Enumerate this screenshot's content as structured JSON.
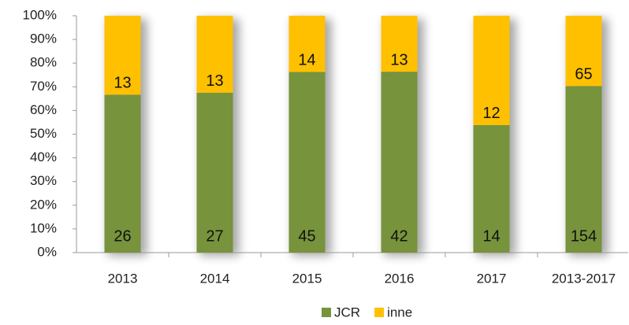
{
  "chart_data": {
    "type": "bar",
    "stacking": "percent",
    "categories": [
      "2013",
      "2014",
      "2015",
      "2016",
      "2017",
      "2013-2017"
    ],
    "series": [
      {
        "name": "JCR",
        "color": "#77933c",
        "values": [
          26,
          27,
          45,
          42,
          14,
          154
        ]
      },
      {
        "name": "inne",
        "color": "#ffc000",
        "values": [
          13,
          13,
          14,
          13,
          12,
          65
        ]
      }
    ],
    "ylim": [
      0,
      100
    ],
    "yticks": [
      {
        "value": 0,
        "label": "0%"
      },
      {
        "value": 10,
        "label": "10%"
      },
      {
        "value": 20,
        "label": "20%"
      },
      {
        "value": 30,
        "label": "30%"
      },
      {
        "value": 40,
        "label": "40%"
      },
      {
        "value": 50,
        "label": "50%"
      },
      {
        "value": 60,
        "label": "60%"
      },
      {
        "value": 70,
        "label": "70%"
      },
      {
        "value": 80,
        "label": "80%"
      },
      {
        "value": 90,
        "label": "90%"
      },
      {
        "value": 100,
        "label": "100%"
      }
    ],
    "legend": "bottom",
    "grid": false
  }
}
